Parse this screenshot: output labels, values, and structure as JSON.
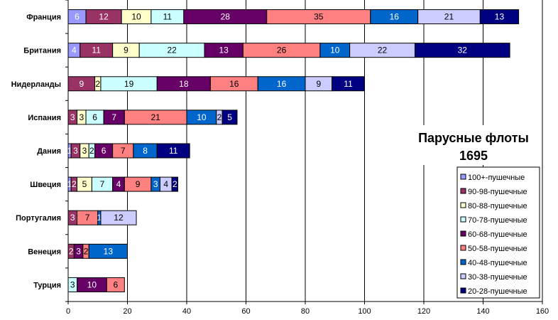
{
  "chart_data": {
    "type": "bar",
    "orientation": "horizontal",
    "stacked": true,
    "title_lines": [
      "Парусные флоты",
      "1695"
    ],
    "categories": [
      "Франция",
      "Британия",
      "Нидерланды",
      "Испания",
      "Дания",
      "Швеция",
      "Португалия",
      "Венеция",
      "Турция"
    ],
    "series": [
      {
        "name": "100+-пушечные",
        "color": "#9999ff",
        "text_color": "#ffffff",
        "values": [
          6,
          4,
          0,
          0,
          1,
          1,
          0,
          0,
          0
        ]
      },
      {
        "name": "90-98-пушечные",
        "color": "#993366",
        "text_color": "#ffffff",
        "values": [
          12,
          11,
          9,
          3,
          3,
          2,
          3,
          2,
          0
        ]
      },
      {
        "name": "80-88-пушечные",
        "color": "#ffffcc",
        "text_color": "#000000",
        "values": [
          10,
          9,
          2,
          3,
          3,
          5,
          0,
          0,
          0
        ]
      },
      {
        "name": "70-78-пушечные",
        "color": "#ccffff",
        "text_color": "#000000",
        "values": [
          11,
          22,
          19,
          6,
          2,
          7,
          0,
          0,
          3
        ]
      },
      {
        "name": "60-68-пушечные",
        "color": "#660066",
        "text_color": "#ffffff",
        "values": [
          28,
          13,
          18,
          7,
          6,
          4,
          0,
          3,
          10
        ]
      },
      {
        "name": "50-58-пушечные",
        "color": "#ff8080",
        "text_color": "#000000",
        "values": [
          35,
          26,
          16,
          21,
          7,
          9,
          7,
          2,
          6
        ]
      },
      {
        "name": "40-48-пушечные",
        "color": "#0066cc",
        "text_color": "#ffffff",
        "values": [
          16,
          10,
          16,
          10,
          8,
          3,
          1,
          13,
          0
        ]
      },
      {
        "name": "30-38-пушечные",
        "color": "#ccccff",
        "text_color": "#000000",
        "values": [
          21,
          22,
          9,
          2,
          0,
          4,
          12,
          0,
          0
        ]
      },
      {
        "name": "20-28-пушечные",
        "color": "#000080",
        "text_color": "#ffffff",
        "values": [
          13,
          32,
          11,
          5,
          11,
          2,
          0,
          0,
          0
        ]
      }
    ],
    "xlim": [
      0,
      160
    ],
    "xticks": [
      0,
      20,
      40,
      60,
      80,
      100,
      120,
      140,
      160
    ],
    "grid": "vertical",
    "legend": "right"
  }
}
